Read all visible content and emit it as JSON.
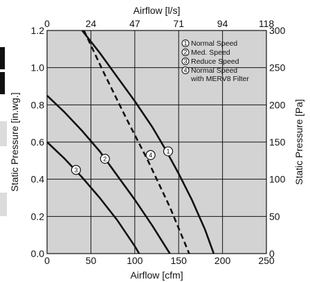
{
  "chart_data": {
    "type": "line",
    "title": "",
    "xlabel": "Airflow [cfm]",
    "ylabel": "Static Pressure [in.wg.]",
    "x2label": "Airflow [l/s]",
    "y2label": "Static Pressure [Pa]",
    "xlim": [
      0,
      250
    ],
    "ylim": [
      0,
      1.2
    ],
    "x_ticks": [
      "0",
      "50",
      "100",
      "150",
      "200",
      "250"
    ],
    "y_ticks": [
      "0.0",
      "0.2",
      "0.4",
      "0.6",
      "0.8",
      "1.0",
      "1.2"
    ],
    "x2_ticks": [
      "0",
      "24",
      "47",
      "71",
      "94",
      "118"
    ],
    "y2_ticks": [
      "0",
      "50",
      "100",
      "150",
      "200",
      "250",
      "300"
    ],
    "grid": true,
    "legend_position": "top-right",
    "legend": [
      {
        "marker": "1",
        "text": [
          "Normal Speed"
        ]
      },
      {
        "marker": "2",
        "text": [
          "Med. Speed"
        ]
      },
      {
        "marker": "3",
        "text": [
          "Reduce Speed"
        ]
      },
      {
        "marker": "4",
        "text": [
          "Normal Speed",
          "with MERV8 Filter"
        ]
      }
    ],
    "series": [
      {
        "marker": "1",
        "style": "solid",
        "x": [
          40,
          60,
          80,
          100,
          120,
          135,
          150,
          165,
          180,
          190
        ],
        "y": [
          1.2,
          1.08,
          0.95,
          0.82,
          0.68,
          0.56,
          0.43,
          0.29,
          0.13,
          0.0
        ],
        "marker_at": [
          138,
          0.55
        ]
      },
      {
        "marker": "2",
        "style": "solid",
        "x": [
          0,
          20,
          40,
          60,
          80,
          100,
          120,
          140
        ],
        "y": [
          0.85,
          0.76,
          0.66,
          0.55,
          0.42,
          0.29,
          0.15,
          0.0
        ],
        "marker_at": [
          66,
          0.51
        ]
      },
      {
        "marker": "3",
        "style": "solid",
        "x": [
          0,
          20,
          40,
          60,
          80,
          100,
          105
        ],
        "y": [
          0.6,
          0.51,
          0.41,
          0.3,
          0.18,
          0.04,
          0.0
        ],
        "marker_at": [
          33,
          0.45
        ]
      },
      {
        "marker": "4",
        "style": "dashed",
        "x": [
          42,
          65,
          90,
          115,
          140,
          162
        ],
        "y": [
          1.2,
          0.97,
          0.73,
          0.5,
          0.25,
          0.0
        ],
        "marker_at": [
          118,
          0.53
        ]
      }
    ]
  },
  "colors": {
    "plot_background": "#d3d3d3",
    "line": "#111111",
    "side_tab_dark": "#111111",
    "side_tab_light": "#dcdcdc"
  }
}
